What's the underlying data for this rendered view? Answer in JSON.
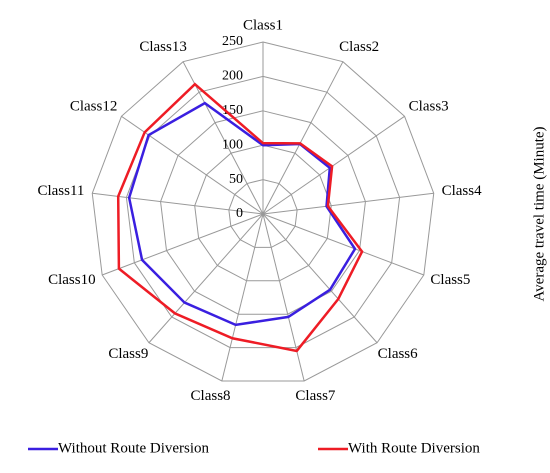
{
  "chart_data": {
    "type": "radar",
    "y_axis_label": "Average travel time (Minute)",
    "categories": [
      "Class1",
      "Class2",
      "Class3",
      "Class4",
      "Class5",
      "Class6",
      "Class7",
      "Class8",
      "Class9",
      "Class10",
      "Class11",
      "Class12",
      "Class13"
    ],
    "ylim": [
      0,
      250
    ],
    "yticks": [
      0,
      50,
      100,
      150,
      200,
      250
    ],
    "grid": true,
    "legend_position": "bottom",
    "series": [
      {
        "name": "Without Route Diversion",
        "color": "#3a1fe0",
        "values": [
          100,
          115,
          118,
          93,
          143,
          147,
          154,
          166,
          172,
          188,
          196,
          202,
          182
        ]
      },
      {
        "name": "With Route Diversion",
        "color": "#ee1c25",
        "values": [
          103,
          116,
          122,
          95,
          154,
          165,
          205,
          186,
          193,
          224,
          212,
          209,
          213
        ]
      }
    ]
  }
}
